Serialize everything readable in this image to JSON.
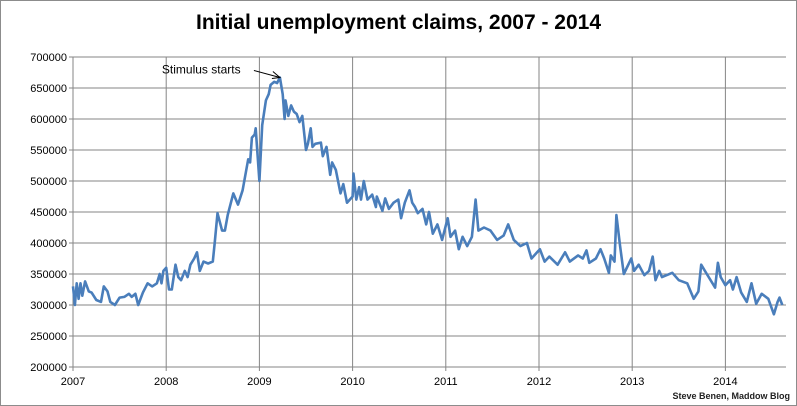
{
  "chart_data": {
    "type": "line",
    "title": "Initial unemployment claims, 2007 - 2014",
    "xlabel": "",
    "ylabel": "",
    "xlim": [
      2007,
      2014.63
    ],
    "ylim": [
      200000,
      700000
    ],
    "x_ticks": [
      "2007",
      "2008",
      "2009",
      "2010",
      "2011",
      "2012",
      "2013",
      "2014"
    ],
    "y_ticks": [
      "700000",
      "650000",
      "600000",
      "550000",
      "500000",
      "450000",
      "400000",
      "350000",
      "300000",
      "250000",
      "200000"
    ],
    "grid": true,
    "line_color": "#4a7ebb",
    "annotation": {
      "text": "Stimulus starts",
      "x": 2009.22,
      "y": 667000
    },
    "source": "Steve Benen, Maddow Blog",
    "series": [
      {
        "x": [
          2007.0,
          2007.02,
          2007.04,
          2007.06,
          2007.08,
          2007.1,
          2007.13,
          2007.17,
          2007.2,
          2007.25,
          2007.3,
          2007.33,
          2007.37,
          2007.4,
          2007.45,
          2007.5,
          2007.55,
          2007.6,
          2007.63,
          2007.67,
          2007.7,
          2007.75,
          2007.8,
          2007.85,
          2007.9,
          2007.93,
          2007.95,
          2007.97,
          2008.0,
          2008.03,
          2008.06,
          2008.1,
          2008.13,
          2008.16,
          2008.2,
          2008.23,
          2008.26,
          2008.3,
          2008.33,
          2008.36,
          2008.4,
          2008.45,
          2008.5,
          2008.52,
          2008.55,
          2008.6,
          2008.63,
          2008.66,
          2008.72,
          2008.77,
          2008.82,
          2008.88,
          2008.9,
          2008.92,
          2008.95,
          2008.96,
          2009.0,
          2009.03,
          2009.07,
          2009.1,
          2009.12,
          2009.16,
          2009.19,
          2009.22,
          2009.25,
          2009.27,
          2009.28,
          2009.31,
          2009.34,
          2009.37,
          2009.4,
          2009.43,
          2009.46,
          2009.5,
          2009.52,
          2009.55,
          2009.57,
          2009.6,
          2009.66,
          2009.68,
          2009.72,
          2009.76,
          2009.78,
          2009.82,
          2009.87,
          2009.9,
          2009.94,
          2010.0,
          2010.01,
          2010.04,
          2010.07,
          2010.09,
          2010.12,
          2010.16,
          2010.21,
          2010.25,
          2010.26,
          2010.32,
          2010.35,
          2010.39,
          2010.44,
          2010.49,
          2010.52,
          2010.56,
          2010.61,
          2010.64,
          2010.67,
          2010.7,
          2010.75,
          2010.79,
          2010.82,
          2010.86,
          2010.91,
          2010.96,
          2011.02,
          2011.05,
          2011.1,
          2011.14,
          2011.18,
          2011.23,
          2011.28,
          2011.32,
          2011.35,
          2011.41,
          2011.48,
          2011.55,
          2011.62,
          2011.67,
          2011.73,
          2011.8,
          2011.87,
          2011.92,
          2011.98,
          2012.01,
          2012.06,
          2012.11,
          2012.2,
          2012.28,
          2012.33,
          2012.42,
          2012.47,
          2012.51,
          2012.54,
          2012.61,
          2012.66,
          2012.7,
          2012.75,
          2012.77,
          2012.81,
          2012.83,
          2012.87,
          2012.91,
          2012.99,
          2013.02,
          2013.07,
          2013.13,
          2013.18,
          2013.22,
          2013.25,
          2013.29,
          2013.32,
          2013.43,
          2013.5,
          2013.59,
          2013.66,
          2013.71,
          2013.74,
          2013.8,
          2013.89,
          2013.92,
          2013.95,
          2014.0,
          2014.05,
          2014.08,
          2014.12,
          2014.17,
          2014.23,
          2014.28,
          2014.33,
          2014.39,
          2014.46,
          2014.52,
          2014.56,
          2014.58,
          2014.61
        ],
        "values": [
          330000,
          300000,
          335000,
          310000,
          335000,
          315000,
          338000,
          322000,
          320000,
          308000,
          305000,
          330000,
          322000,
          305000,
          300000,
          312000,
          313000,
          318000,
          313000,
          318000,
          300000,
          320000,
          335000,
          330000,
          335000,
          350000,
          335000,
          355000,
          360000,
          325000,
          325000,
          365000,
          345000,
          340000,
          355000,
          345000,
          365000,
          375000,
          385000,
          355000,
          370000,
          367000,
          370000,
          400000,
          448000,
          420000,
          420000,
          445000,
          480000,
          462000,
          485000,
          535000,
          530000,
          570000,
          575000,
          585000,
          500000,
          590000,
          630000,
          640000,
          655000,
          660000,
          658000,
          667000,
          640000,
          600000,
          630000,
          605000,
          622000,
          612000,
          608000,
          595000,
          605000,
          550000,
          560000,
          585000,
          555000,
          560000,
          562000,
          540000,
          555000,
          510000,
          530000,
          518000,
          480000,
          495000,
          465000,
          475000,
          512000,
          470000,
          490000,
          470000,
          500000,
          470000,
          478000,
          458000,
          475000,
          452000,
          472000,
          455000,
          465000,
          470000,
          440000,
          465000,
          485000,
          465000,
          458000,
          448000,
          455000,
          430000,
          450000,
          415000,
          430000,
          405000,
          440000,
          410000,
          420000,
          390000,
          410000,
          395000,
          410000,
          470000,
          420000,
          425000,
          420000,
          405000,
          412000,
          430000,
          405000,
          395000,
          400000,
          375000,
          385000,
          390000,
          370000,
          378000,
          365000,
          385000,
          370000,
          380000,
          375000,
          388000,
          368000,
          375000,
          390000,
          375000,
          352000,
          380000,
          370000,
          445000,
          395000,
          350000,
          375000,
          355000,
          365000,
          348000,
          355000,
          378000,
          340000,
          355000,
          345000,
          352000,
          340000,
          335000,
          310000,
          322000,
          365000,
          350000,
          328000,
          368000,
          345000,
          332000,
          340000,
          325000,
          345000,
          320000,
          305000,
          335000,
          302000,
          318000,
          310000,
          285000,
          305000,
          312000,
          300000
        ]
      }
    ]
  }
}
